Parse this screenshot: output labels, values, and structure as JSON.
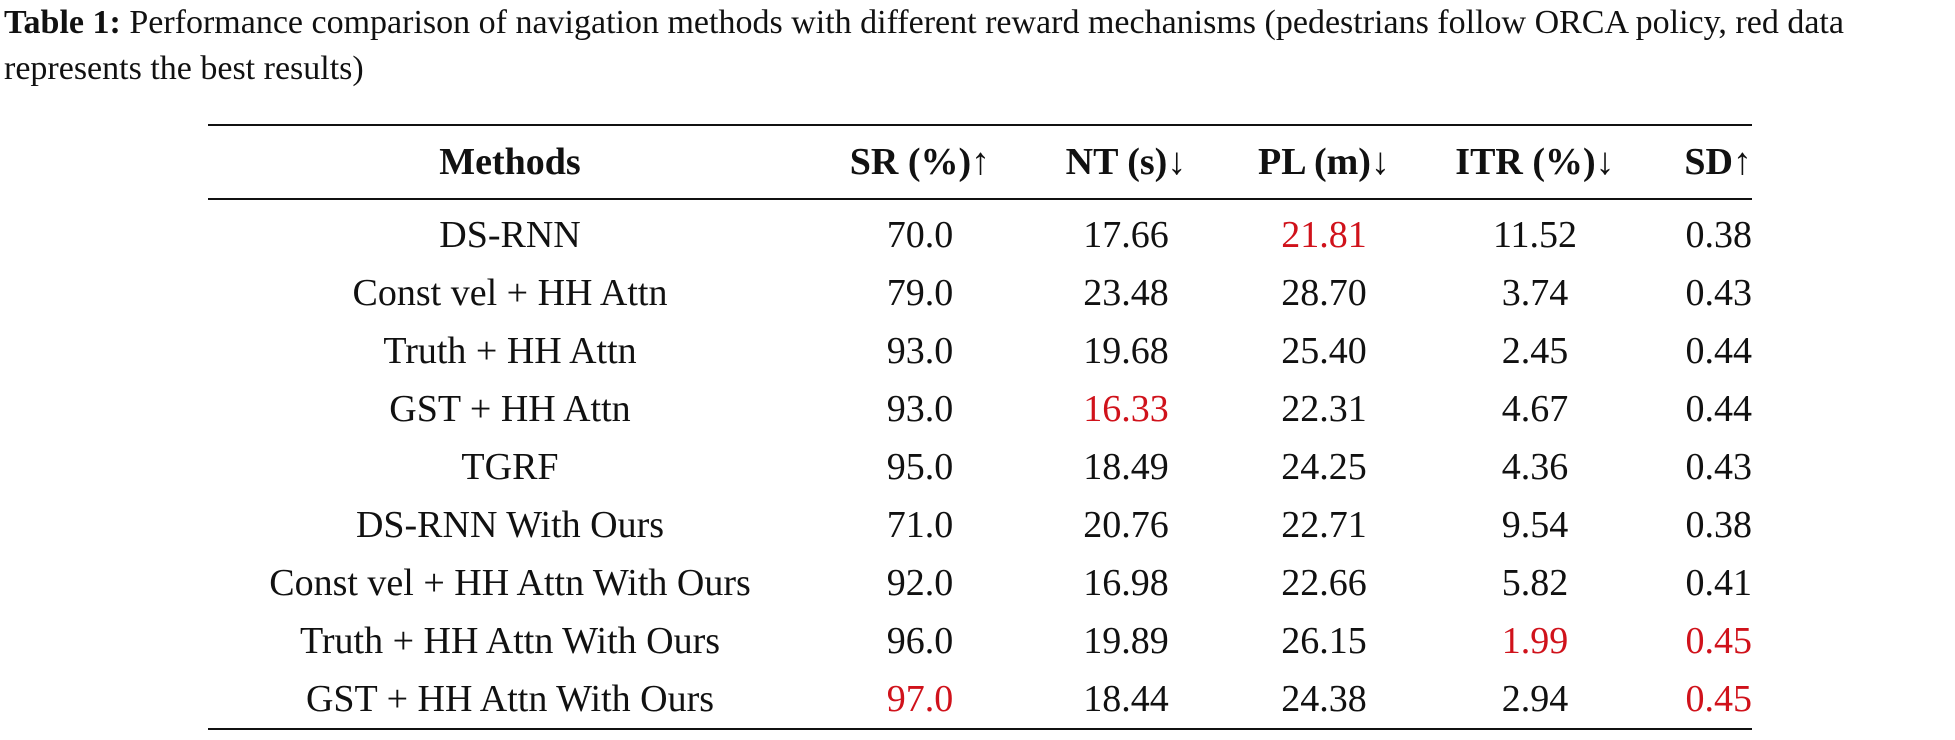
{
  "caption": {
    "label": "Table 1:",
    "text": "Performance comparison of navigation methods with different reward mechanisms (pedestrians follow ORCA policy, red data represents the best results)"
  },
  "table": {
    "headers": [
      "Methods",
      "SR (%)↑",
      "NT (s)↓",
      "PL (m)↓",
      "ITR (%)↓",
      "SD↑"
    ],
    "rows": [
      {
        "method": "DS-RNN",
        "sr": "70.0",
        "nt": "17.66",
        "pl": "21.81",
        "itr": "11.52",
        "sd": "0.38"
      },
      {
        "method": "Const vel + HH Attn",
        "sr": "79.0",
        "nt": "23.48",
        "pl": "28.70",
        "itr": "3.74",
        "sd": "0.43"
      },
      {
        "method": "Truth + HH Attn",
        "sr": "93.0",
        "nt": "19.68",
        "pl": "25.40",
        "itr": "2.45",
        "sd": "0.44"
      },
      {
        "method": "GST + HH Attn",
        "sr": "93.0",
        "nt": "16.33",
        "pl": "22.31",
        "itr": "4.67",
        "sd": "0.44"
      },
      {
        "method": "TGRF",
        "sr": "95.0",
        "nt": "18.49",
        "pl": "24.25",
        "itr": "4.36",
        "sd": "0.43"
      },
      {
        "method": "DS-RNN With Ours",
        "sr": "71.0",
        "nt": "20.76",
        "pl": "22.71",
        "itr": "9.54",
        "sd": "0.38"
      },
      {
        "method": "Const vel + HH Attn With Ours",
        "sr": "92.0",
        "nt": "16.98",
        "pl": "22.66",
        "itr": "5.82",
        "sd": "0.41"
      },
      {
        "method": "Truth + HH Attn With Ours",
        "sr": "96.0",
        "nt": "19.89",
        "pl": "26.15",
        "itr": "1.99",
        "sd": "0.45"
      },
      {
        "method": "GST + HH Attn With Ours",
        "sr": "97.0",
        "nt": "18.44",
        "pl": "24.38",
        "itr": "2.94",
        "sd": "0.45"
      }
    ]
  },
  "colors": {
    "best": "#d0121b",
    "text": "#111111"
  }
}
